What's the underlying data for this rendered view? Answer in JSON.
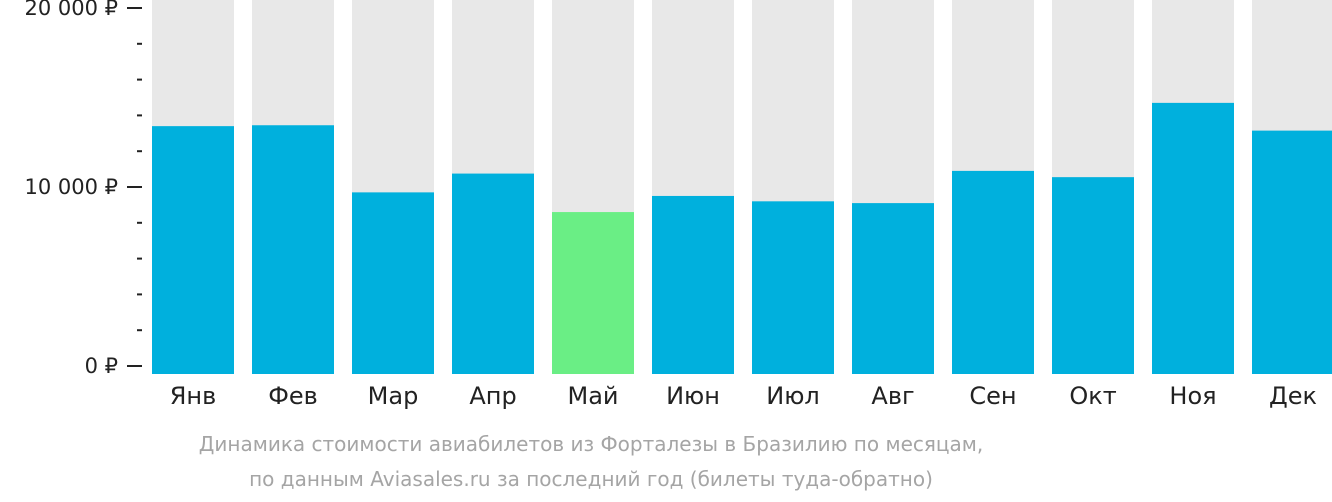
{
  "chart_data": {
    "type": "bar",
    "categories": [
      "Янв",
      "Фев",
      "Мар",
      "Апр",
      "Май",
      "Июн",
      "Июл",
      "Авг",
      "Сен",
      "Окт",
      "Ноя",
      "Дек"
    ],
    "values": [
      13400,
      13450,
      9700,
      10750,
      8600,
      9500,
      9200,
      9100,
      10900,
      10550,
      14700,
      13150
    ],
    "highlight_index": 4,
    "ylim": [
      0,
      20000
    ],
    "yticks": [
      {
        "value": 0,
        "label": "0 ₽"
      },
      {
        "value": 10000,
        "label": "10 000 ₽"
      },
      {
        "value": 20000,
        "label": "20 000 ₽"
      }
    ],
    "minor_tick_step": 2000,
    "grid": false,
    "colors": {
      "bar": "#00b0dd",
      "highlight": "#6aee85",
      "background_bar": "#e8e8e8",
      "axis": "#222222"
    },
    "caption_lines": [
      "Динамика стоимости авиабилетов из Форталезы в Бразилию по месяцам,",
      "по данным Aviasales.ru за последний год (билеты туда-обратно)"
    ]
  }
}
